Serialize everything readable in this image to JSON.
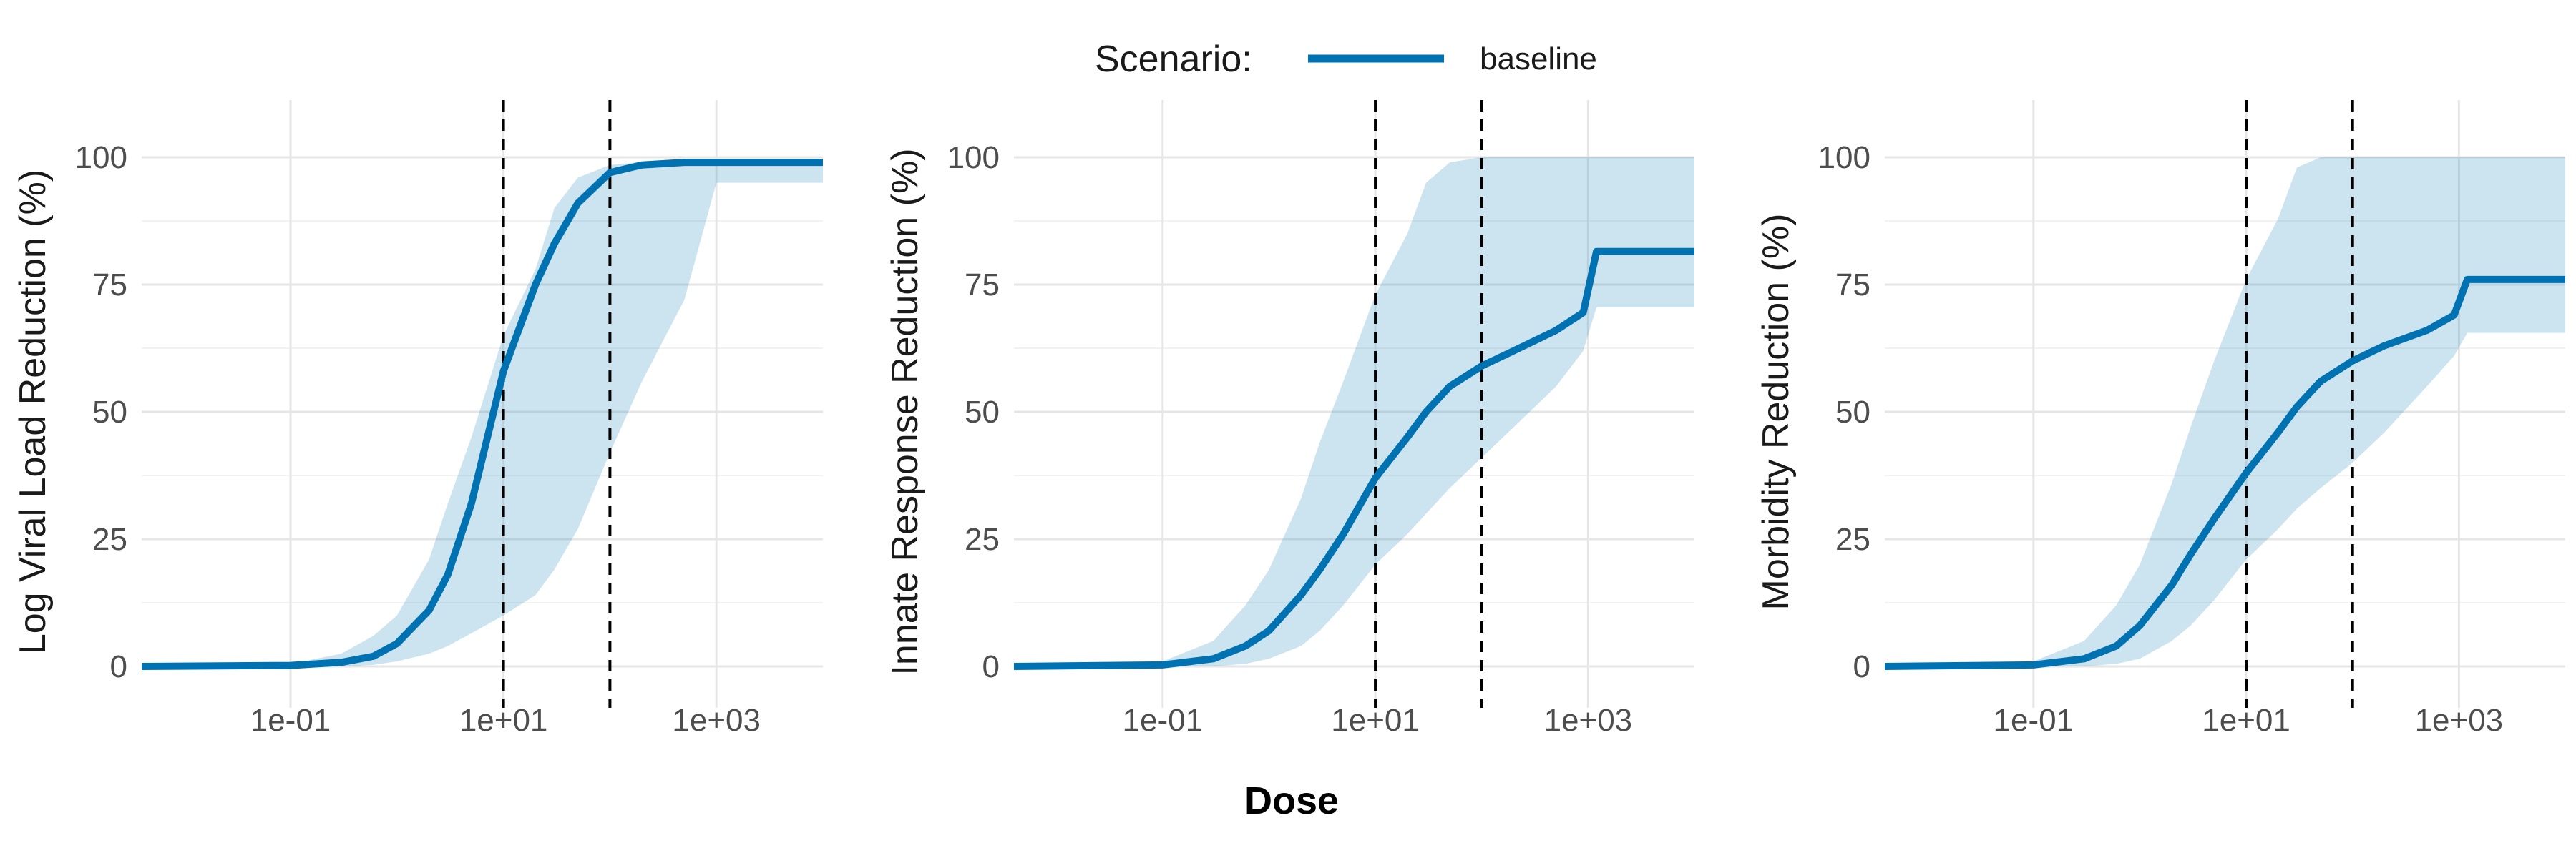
{
  "legend": {
    "title": "Scenario:",
    "items": [
      {
        "label": "baseline",
        "color": "#0072B2"
      }
    ]
  },
  "x_axis_title": "Dose",
  "colors": {
    "line": "#0072B2",
    "band": "#0072B2",
    "grid_major": "#e6e6e6",
    "grid_minor": "#f2f2f2",
    "vline": "#000000"
  },
  "chart_data": [
    {
      "type": "line",
      "ylabel": "Log Viral Load Reduction (%)",
      "xlabel": "Dose",
      "x_scale": "log10",
      "xlim": [
        0.004,
        10000
      ],
      "ylim": [
        0,
        100
      ],
      "x_ticks": [
        0.1,
        10,
        1000
      ],
      "x_tick_labels": [
        "1e-01",
        "1e+01",
        "1e+03"
      ],
      "y_ticks": [
        0,
        25,
        50,
        75,
        100
      ],
      "y_tick_labels": [
        "0",
        "25",
        "50",
        "75",
        "100"
      ],
      "vlines": [
        10,
        100
      ],
      "series": [
        {
          "x": [
            0.004,
            0.1,
            0.3,
            0.6,
            1,
            2,
            3,
            5,
            10,
            20,
            30,
            50,
            100,
            200,
            500,
            1000,
            10000
          ],
          "y": [
            0,
            0.2,
            0.8,
            2,
            4.5,
            11,
            18,
            32,
            58,
            75,
            83,
            91,
            97,
            98.5,
            99,
            99,
            99
          ],
          "lower": [
            0,
            0,
            0,
            0.3,
            1,
            2.5,
            4,
            6.5,
            10,
            14,
            19,
            27,
            42,
            56,
            72,
            95,
            95
          ],
          "upper": [
            0,
            0.5,
            2.5,
            6,
            10,
            21,
            32,
            45,
            65,
            78,
            90,
            96,
            98.5,
            99,
            99,
            99,
            99
          ]
        }
      ]
    },
    {
      "type": "line",
      "ylabel": "Innate Response Reduction (%)",
      "xlabel": "Dose",
      "x_scale": "log10",
      "xlim": [
        0.004,
        10000
      ],
      "ylim": [
        0,
        100
      ],
      "x_ticks": [
        0.1,
        10,
        1000
      ],
      "x_tick_labels": [
        "1e-01",
        "1e+01",
        "1e+03"
      ],
      "y_ticks": [
        0,
        25,
        50,
        75,
        100
      ],
      "y_tick_labels": [
        "0",
        "25",
        "50",
        "75",
        "100"
      ],
      "vlines": [
        10,
        100
      ],
      "series": [
        {
          "x": [
            0.004,
            0.1,
            0.3,
            0.6,
            1,
            2,
            3,
            5,
            10,
            20,
            30,
            50,
            100,
            200,
            500,
            900,
            1200,
            10000
          ],
          "y": [
            0,
            0.3,
            1.5,
            4,
            7,
            14,
            19,
            26,
            37,
            45,
            50,
            55,
            59,
            62,
            66,
            69.5,
            81.5,
            81.5
          ],
          "lower": [
            0,
            0,
            0,
            0.5,
            1.5,
            4,
            7,
            12,
            20,
            26,
            30,
            35,
            41,
            47,
            55,
            62,
            70.5,
            70.5
          ],
          "upper": [
            0,
            1,
            5,
            12,
            19,
            33,
            44,
            56,
            73,
            85,
            95,
            99,
            100,
            100,
            100,
            100,
            100,
            100
          ]
        }
      ]
    },
    {
      "type": "line",
      "ylabel": "Morbidity Reduction (%)",
      "xlabel": "Dose",
      "x_scale": "log10",
      "xlim": [
        0.004,
        10000
      ],
      "ylim": [
        0,
        100
      ],
      "x_ticks": [
        0.1,
        10,
        1000
      ],
      "x_tick_labels": [
        "1e-01",
        "1e+01",
        "1e+03"
      ],
      "y_ticks": [
        0,
        25,
        50,
        75,
        100
      ],
      "y_tick_labels": [
        "0",
        "25",
        "50",
        "75",
        "100"
      ],
      "vlines": [
        10,
        100
      ],
      "series": [
        {
          "x": [
            0.004,
            0.1,
            0.3,
            0.6,
            1,
            2,
            3,
            5,
            10,
            20,
            30,
            50,
            100,
            200,
            500,
            900,
            1200,
            10000
          ],
          "y": [
            0,
            0.3,
            1.5,
            4,
            8,
            16,
            22,
            29,
            38,
            46,
            51,
            56,
            60,
            63,
            66,
            69,
            76,
            76
          ],
          "lower": [
            0,
            0,
            0,
            0.5,
            1.5,
            5,
            8,
            13,
            21,
            27,
            31,
            35,
            40,
            46,
            55,
            61,
            65.5,
            65.5
          ],
          "upper": [
            0,
            1,
            5,
            12,
            20,
            36,
            47,
            60,
            76,
            88,
            98,
            100,
            100,
            100,
            100,
            100,
            100,
            100
          ]
        }
      ]
    }
  ]
}
